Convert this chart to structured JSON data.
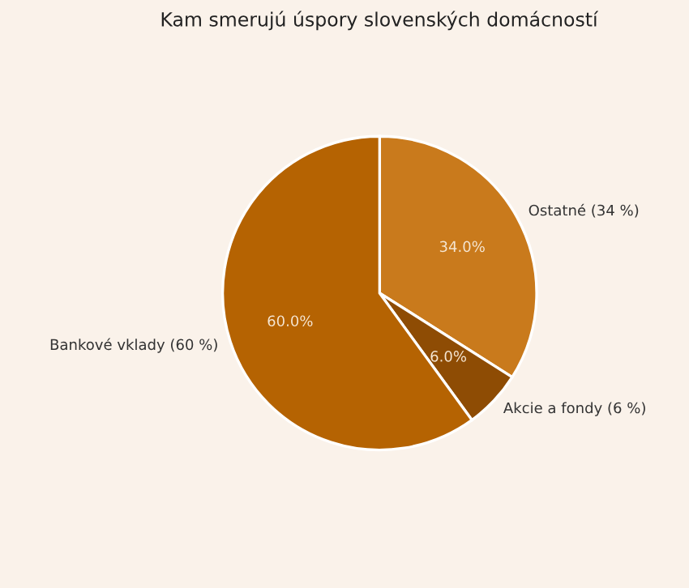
{
  "chart_data": {
    "type": "pie",
    "title": "Kam smerujú úspory slovenských domácností",
    "categories": [
      "Ostatné (34 %)",
      "Akcie a fondy (6 %)",
      "Bankové vklady (60 %)"
    ],
    "values": [
      34,
      6,
      60
    ],
    "colors": [
      "#c97a1c",
      "#8e4c04",
      "#b56302"
    ],
    "value_labels": [
      "34.0%",
      "6.0%",
      "60.0%"
    ]
  }
}
